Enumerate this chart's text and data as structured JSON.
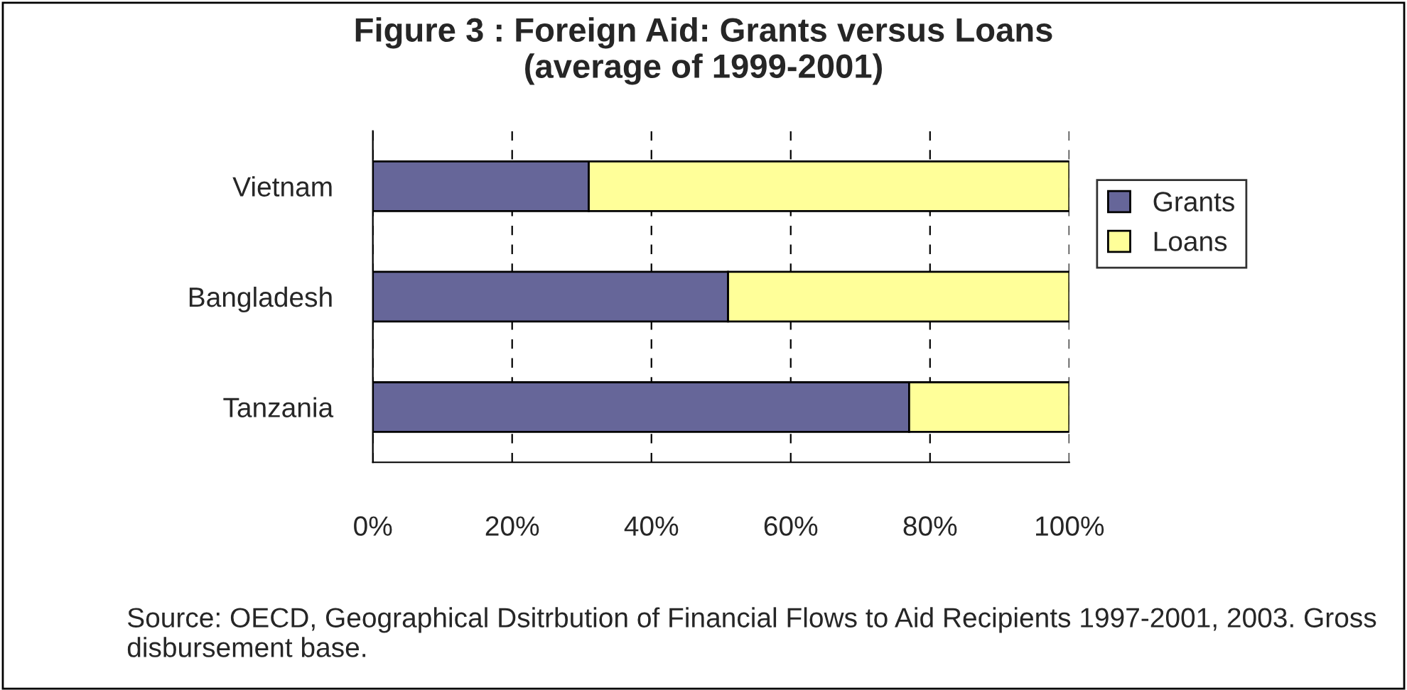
{
  "chart_data": {
    "type": "bar",
    "title": "Figure 3 : Foreign Aid: Grants versus Loans\n(average of 1999-2001)",
    "orientation": "horizontal",
    "stacked": true,
    "categories": [
      "Vietnam",
      "Bangladesh",
      "Tanzania"
    ],
    "series": [
      {
        "name": "Grants",
        "color": "#666699",
        "values": [
          31,
          51,
          77
        ]
      },
      {
        "name": "Loans",
        "color": "#ffff99",
        "values": [
          69,
          49,
          23
        ]
      }
    ],
    "xlim": [
      0,
      100
    ],
    "xticks": [
      {
        "value": 0,
        "label": "0%"
      },
      {
        "value": 20,
        "label": "20%"
      },
      {
        "value": 40,
        "label": "40%"
      },
      {
        "value": 60,
        "label": "60%"
      },
      {
        "value": 80,
        "label": "80%"
      },
      {
        "value": 100,
        "label": "100%"
      }
    ],
    "grid": "x",
    "legend": "right",
    "annotations": [
      "Source: OECD, Geographical Dsitrbution of Financial Flows to Aid Recipients 1997-2001, 2003. Gross disbursement base."
    ]
  }
}
